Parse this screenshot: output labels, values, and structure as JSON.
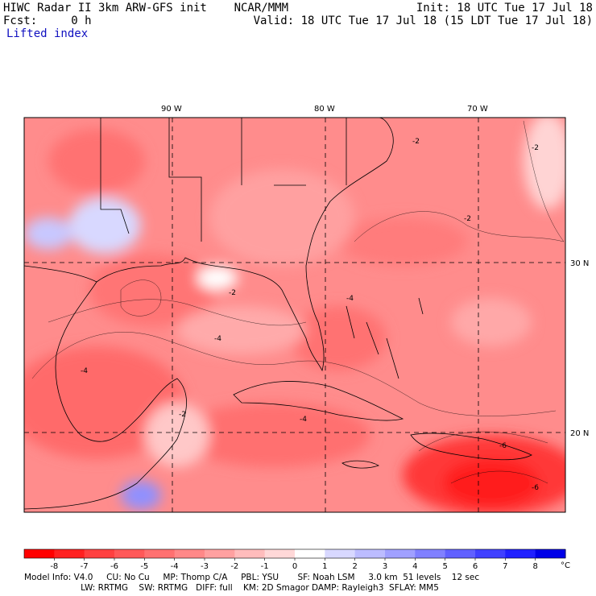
{
  "header": {
    "title": "HIWC Radar II 3km ARW-GFS init    NCAR/MMM",
    "init": "Init: 18 UTC Tue 17 Jul 18",
    "forecast": "Fcst:     0 h",
    "valid": "Valid: 18 UTC Tue 17 Jul 18 (15 LDT Tue 17 Jul 18)",
    "field": "Lifted index"
  },
  "map": {
    "longitude_labels": [
      "90 W",
      "80 W",
      "70 W"
    ],
    "latitude_labels": [
      "30 N",
      "20 N"
    ],
    "contour_labels": [
      "-2",
      "-4",
      "-6"
    ]
  },
  "colorbar": {
    "tick_labels": [
      "-8",
      "-7",
      "-6",
      "-5",
      "-4",
      "-3",
      "-2",
      "-1",
      "0",
      "1",
      "2",
      "3",
      "4",
      "5",
      "6",
      "7",
      "8"
    ],
    "unit": "°C",
    "colors": [
      "#ff0000",
      "#ff2020",
      "#ff4040",
      "#ff5858",
      "#ff7070",
      "#ff8888",
      "#ffa0a0",
      "#ffbcbc",
      "#ffd8d8",
      "#ffffff",
      "#d8d8ff",
      "#bcbcff",
      "#a0a0ff",
      "#8080ff",
      "#6060ff",
      "#4040ff",
      "#2020ff",
      "#0000e8"
    ]
  },
  "footer": {
    "line1": "Model Info: V4.0     CU: No Cu     MP: Thomp C/A     PBL: YSU       SF: Noah LSM     3.0 km  51 levels    12 sec",
    "line2": "                     LW: RRTMG    SW: RRTMG   DIFF: full    KM: 2D Smagor DAMP: Rayleigh3  SFLAY: MM5"
  }
}
